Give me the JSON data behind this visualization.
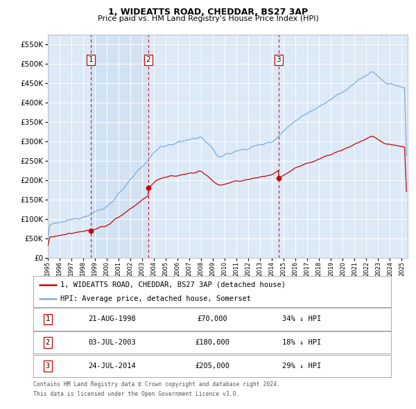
{
  "title": "1, WIDEATTS ROAD, CHEDDAR, BS27 3AP",
  "subtitle": "Price paid vs. HM Land Registry's House Price Index (HPI)",
  "legend_red": "1, WIDEATTS ROAD, CHEDDAR, BS27 3AP (detached house)",
  "legend_blue": "HPI: Average price, detached house, Somerset",
  "footer1": "Contains HM Land Registry data © Crown copyright and database right 2024.",
  "footer2": "This data is licensed under the Open Government Licence v3.0.",
  "transactions": [
    {
      "num": 1,
      "x": 1998.64,
      "price": 70000,
      "label": "21-AUG-1998",
      "price_str": "£70,000",
      "pct": "34% ↓ HPI"
    },
    {
      "num": 2,
      "x": 2003.5,
      "price": 180000,
      "label": "03-JUL-2003",
      "price_str": "£180,000",
      "pct": "18% ↓ HPI"
    },
    {
      "num": 3,
      "x": 2014.56,
      "price": 205000,
      "label": "24-JUL-2014",
      "price_str": "£205,000",
      "pct": "29% ↓ HPI"
    }
  ],
  "ylim": [
    0,
    575000
  ],
  "xlim_start": 1995.0,
  "xlim_end": 2025.5,
  "bg_color": "#dce9f7",
  "grid_color": "#ffffff",
  "red_color": "#cc0000",
  "blue_color": "#7aaddb",
  "vline_color": "#cc0000",
  "shade_color": "#dce9f7"
}
